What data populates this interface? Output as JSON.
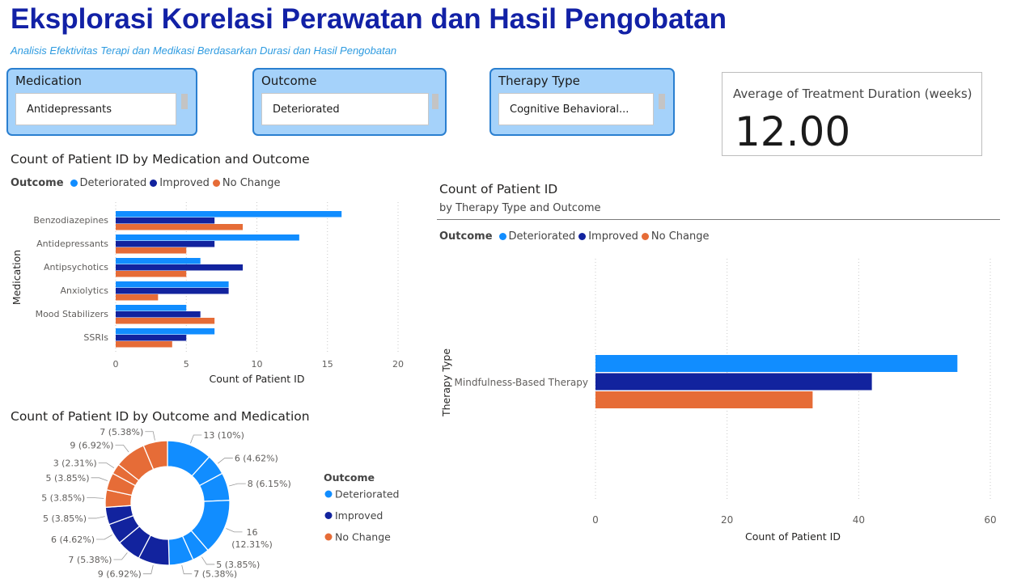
{
  "title": "Eksplorasi Korelasi Perawatan dan Hasil Pengobatan",
  "subtitle": "Analisis Efektivitas Terapi dan Medikasi Berdasarkan Durasi dan Hasil Pengobatan",
  "colors": {
    "Deteriorated": "#118DFF",
    "Improved": "#12239E",
    "No Change": "#E66C37"
  },
  "slicers": [
    {
      "label": "Medication",
      "value": "Antidepressants"
    },
    {
      "label": "Outcome",
      "value": "Deteriorated"
    },
    {
      "label": "Therapy Type",
      "value": "Cognitive Behavioral..."
    }
  ],
  "card": {
    "label": "Average of Treatment Duration (weeks)",
    "value": "12.00"
  },
  "chart_data": [
    {
      "type": "bar",
      "title": "Count of Patient ID by Medication and Outcome",
      "legend_title": "Outcome",
      "legend_position": "top-left",
      "xlabel": "Count of Patient ID",
      "ylabel": "Medication",
      "categories": [
        "Benzodiazepines",
        "Antidepressants",
        "Antipsychotics",
        "Anxiolytics",
        "Mood Stabilizers",
        "SSRIs"
      ],
      "series": [
        {
          "name": "Deteriorated",
          "values": [
            16,
            13,
            6,
            8,
            5,
            7
          ]
        },
        {
          "name": "Improved",
          "values": [
            7,
            7,
            9,
            8,
            6,
            5
          ]
        },
        {
          "name": "No Change",
          "values": [
            9,
            5,
            5,
            3,
            7,
            4
          ]
        }
      ],
      "xlim": [
        0,
        20
      ],
      "xticks": [
        "0",
        "5",
        "10",
        "15",
        "20"
      ],
      "grid": "vertical dotted"
    },
    {
      "type": "pie",
      "donut": true,
      "title": "Count of Patient ID by Outcome and Medication",
      "legend_title": "Outcome",
      "legend_position": "right",
      "legend": [
        "Deteriorated",
        "Improved",
        "No Change"
      ],
      "slices": [
        {
          "group": "Deteriorated",
          "value": 13,
          "label": "13 (10%)"
        },
        {
          "group": "Deteriorated",
          "value": 6,
          "label": "6 (4.62%)"
        },
        {
          "group": "Deteriorated",
          "value": 8,
          "label": "8 (6.15%)"
        },
        {
          "group": "Deteriorated",
          "value": 16,
          "label": "16 (12.31%)"
        },
        {
          "group": "Deteriorated",
          "value": 5,
          "label": "5 (3.85%)"
        },
        {
          "group": "Deteriorated",
          "value": 7,
          "label": "7 (5.38%)"
        },
        {
          "group": "Improved",
          "value": 9,
          "label": "9 (6.92%)"
        },
        {
          "group": "Improved",
          "value": 7,
          "label": "7 (5.38%)"
        },
        {
          "group": "Improved",
          "value": 6,
          "label": "6 (4.62%)"
        },
        {
          "group": "Improved",
          "value": 5,
          "label": "5 (3.85%)"
        },
        {
          "group": "No Change",
          "value": 5,
          "label": "5 (3.85%)"
        },
        {
          "group": "No Change",
          "value": 5,
          "label": "5 (3.85%)"
        },
        {
          "group": "No Change",
          "value": 3,
          "label": "3 (2.31%)"
        },
        {
          "group": "No Change",
          "value": 9,
          "label": "9 (6.92%)"
        },
        {
          "group": "No Change",
          "value": 7,
          "label": "7 (5.38%)"
        }
      ]
    },
    {
      "type": "bar",
      "title": "Count of Patient ID",
      "subtitle": "by Therapy Type and Outcome",
      "legend_title": "Outcome",
      "legend_position": "top-left",
      "xlabel": "Count of Patient ID",
      "ylabel": "Therapy Type",
      "categories": [
        "Mindfulness-Based Therapy"
      ],
      "series": [
        {
          "name": "Deteriorated",
          "values": [
            55
          ]
        },
        {
          "name": "Improved",
          "values": [
            42
          ]
        },
        {
          "name": "No Change",
          "values": [
            33
          ]
        }
      ],
      "xlim": [
        0,
        60
      ],
      "xticks": [
        "0",
        "20",
        "40",
        "60"
      ],
      "grid": "vertical dotted"
    }
  ]
}
